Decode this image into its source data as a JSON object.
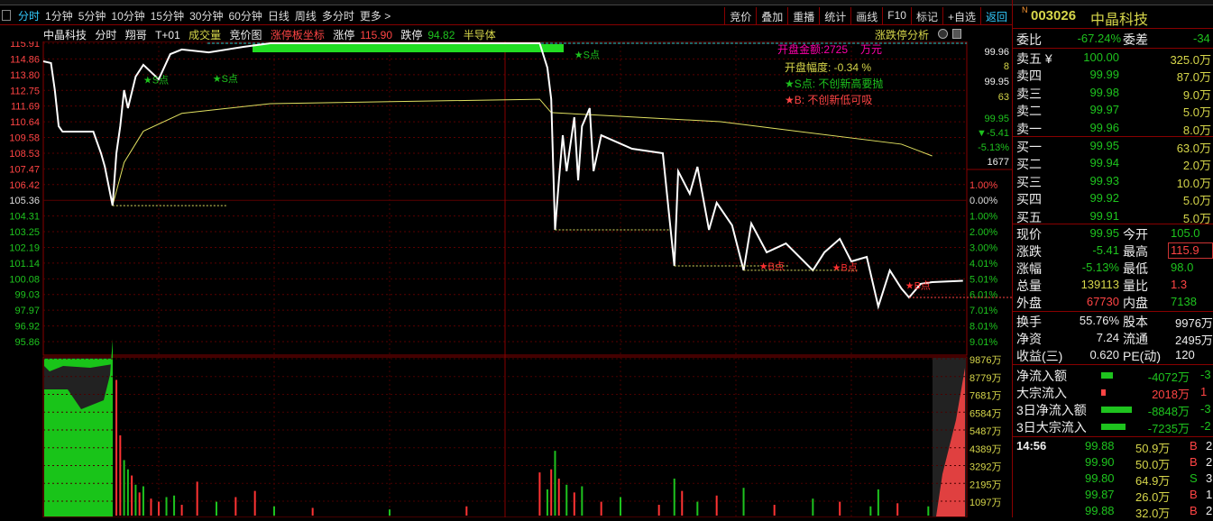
{
  "toolbar": {
    "tabs": [
      "分时",
      "1分钟",
      "5分钟",
      "10分钟",
      "15分钟",
      "30分钟",
      "60分钟",
      "日线",
      "周线",
      "多分时",
      "更多 >"
    ],
    "buttons": [
      "竞价",
      "叠加",
      "重播",
      "统计",
      "画线",
      "F10",
      "标记",
      "+自选",
      "返回"
    ]
  },
  "chart_header": {
    "name": "中晶科技",
    "mode": "分时",
    "user": "翔哥",
    "tplus": "T+01",
    "volume_label": "成交量",
    "auction_label": "竞价图",
    "limit_board": "涨停板坐标",
    "limit_up_label": "涨停",
    "limit_up": "115.90",
    "limit_down_label": "跌停",
    "limit_down": "94.82",
    "sector": "半导体",
    "analysis": "涨跌停分析"
  },
  "annotations": {
    "open_amount": "开盘金额:2725",
    "open_amount_unit": "万元",
    "open_range": "开盘幅度: -0.34  %",
    "s_note": "★S点: 不创新高要抛",
    "b_note": "★B: 不创新低可吸"
  },
  "colors": {
    "price_line": "#ffffff",
    "avg_line": "#e0e060",
    "up": "#ff3030",
    "down": "#1ec31e",
    "grid": "#6a0000"
  },
  "chart_data": {
    "type": "line",
    "price_ticks": [
      "115.91",
      "114.86",
      "113.80",
      "112.75",
      "111.69",
      "110.64",
      "109.58",
      "108.53",
      "107.47",
      "106.42",
      "105.36",
      "104.31",
      "103.25",
      "102.19",
      "101.14",
      "100.08",
      "99.03",
      "97.97",
      "96.92",
      "95.86"
    ],
    "pct_ticks": [
      "1.00%",
      "0.00%",
      "1.00%",
      "2.00%",
      "3.00%",
      "4.01%",
      "5.01%",
      "6.01%",
      "7.01%",
      "8.01%",
      "9.01%"
    ],
    "ylim": [
      95.86,
      115.91
    ],
    "xlim_minutes": [
      0,
      240
    ],
    "price": [
      [
        0,
        114.7
      ],
      [
        2,
        114.58
      ],
      [
        3,
        112.76
      ],
      [
        4,
        110.34
      ],
      [
        5,
        109.97
      ],
      [
        13,
        109.97
      ],
      [
        15,
        108.52
      ],
      [
        16,
        107.61
      ],
      [
        18,
        105.0
      ],
      [
        19,
        108.52
      ],
      [
        20,
        110.34
      ],
      [
        21,
        112.76
      ],
      [
        22,
        111.55
      ],
      [
        24,
        113.67
      ],
      [
        26,
        114.46
      ],
      [
        30,
        113.49
      ],
      [
        33,
        115.18
      ],
      [
        36,
        115.49
      ],
      [
        43,
        115.3
      ],
      [
        52,
        115.67
      ],
      [
        59,
        115.91
      ],
      [
        129,
        115.91
      ],
      [
        131,
        114.27
      ],
      [
        132,
        112.15
      ],
      [
        133,
        103.37
      ],
      [
        134,
        106.7
      ],
      [
        135,
        109.73
      ],
      [
        136,
        107.31
      ],
      [
        138,
        110.94
      ],
      [
        139,
        106.7
      ],
      [
        140,
        110.34
      ],
      [
        142,
        111.55
      ],
      [
        143,
        107.31
      ],
      [
        145,
        109.73
      ],
      [
        153,
        108.82
      ],
      [
        161,
        108.52
      ],
      [
        164,
        100.95
      ],
      [
        165,
        107.31
      ],
      [
        168,
        105.8
      ],
      [
        170,
        107.61
      ],
      [
        173,
        103.37
      ],
      [
        175,
        105.19
      ],
      [
        179,
        103.68
      ],
      [
        182,
        100.65
      ],
      [
        184,
        103.8
      ],
      [
        188,
        101.86
      ],
      [
        193,
        102.46
      ],
      [
        200,
        100.65
      ],
      [
        203,
        101.86
      ],
      [
        207,
        102.77
      ],
      [
        210,
        101.25
      ],
      [
        214,
        101.55
      ],
      [
        217,
        98.22
      ],
      [
        220,
        100.65
      ],
      [
        223,
        99.43
      ],
      [
        225,
        98.83
      ],
      [
        228,
        99.74
      ],
      [
        231,
        99.86
      ],
      [
        239,
        99.95
      ]
    ],
    "avg": [
      [
        18,
        105.0
      ],
      [
        21,
        107.9
      ],
      [
        26,
        110.0
      ],
      [
        36,
        111.2
      ],
      [
        59,
        111.85
      ],
      [
        129,
        112.15
      ],
      [
        132,
        111.25
      ],
      [
        176,
        110.64
      ],
      [
        223,
        109.13
      ],
      [
        231,
        108.34
      ]
    ],
    "markers": [
      {
        "minute": 26,
        "price": 113.2,
        "label": "★S点",
        "color": "#1ec31e"
      },
      {
        "minute": 44,
        "price": 113.3,
        "label": "★S点",
        "color": "#1ec31e"
      },
      {
        "minute": 138,
        "price": 114.9,
        "label": "★S点",
        "color": "#1ec31e"
      },
      {
        "minute": 186,
        "price": 100.7,
        "label": "★B点",
        "color": "#ff3030"
      },
      {
        "minute": 205,
        "price": 100.6,
        "label": "★B点",
        "color": "#ff3030"
      },
      {
        "minute": 224,
        "price": 99.4,
        "label": "★B点",
        "color": "#ff3030"
      }
    ],
    "vol_ticks": [
      "9876万",
      "8779万",
      "7681万",
      "6584万",
      "5487万",
      "4389万",
      "3292万",
      "2195万",
      "1097万"
    ],
    "volume": [
      [
        19,
        8800,
        "u"
      ],
      [
        20,
        5200,
        "u"
      ],
      [
        21,
        3600,
        "d"
      ],
      [
        22,
        3000,
        "d"
      ],
      [
        23,
        2600,
        "u"
      ],
      [
        24,
        2000,
        "d"
      ],
      [
        25,
        1500,
        "u"
      ],
      [
        26,
        1900,
        "d"
      ],
      [
        28,
        1100,
        "u"
      ],
      [
        30,
        900,
        "u"
      ],
      [
        32,
        1200,
        "d"
      ],
      [
        34,
        1300,
        "d"
      ],
      [
        36,
        700,
        "u"
      ],
      [
        40,
        2200,
        "u"
      ],
      [
        45,
        900,
        "d"
      ],
      [
        50,
        1200,
        "u"
      ],
      [
        55,
        1600,
        "u"
      ],
      [
        60,
        600,
        "d"
      ],
      [
        70,
        500,
        "u"
      ],
      [
        90,
        400,
        "d"
      ],
      [
        110,
        600,
        "u"
      ],
      [
        129,
        2800,
        "u"
      ],
      [
        131,
        1700,
        "d"
      ],
      [
        132,
        3000,
        "u"
      ],
      [
        133,
        4200,
        "d"
      ],
      [
        134,
        2400,
        "u"
      ],
      [
        136,
        2000,
        "d"
      ],
      [
        138,
        1500,
        "u"
      ],
      [
        140,
        1900,
        "d"
      ],
      [
        145,
        900,
        "u"
      ],
      [
        150,
        1200,
        "d"
      ],
      [
        160,
        700,
        "u"
      ],
      [
        164,
        2400,
        "d"
      ],
      [
        166,
        1600,
        "u"
      ],
      [
        170,
        900,
        "d"
      ],
      [
        175,
        1300,
        "u"
      ],
      [
        182,
        1800,
        "d"
      ],
      [
        190,
        700,
        "u"
      ],
      [
        200,
        1100,
        "d"
      ],
      [
        207,
        900,
        "u"
      ],
      [
        215,
        600,
        "d"
      ],
      [
        217,
        1700,
        "d"
      ],
      [
        222,
        800,
        "u"
      ],
      [
        230,
        600,
        "d"
      ]
    ]
  },
  "right_axis": {
    "ask1": "99.96",
    "ask1_vol": "8",
    "bid1": "99.95",
    "bid1_vol": "63",
    "price": "99.95",
    "change": "▼-5.41",
    "pct": "-5.13%",
    "last_vol": "1677"
  },
  "quote": {
    "code": "003026",
    "name": "中晶科技",
    "badge": "N",
    "ratio_label": "委比",
    "ratio": "-67.24%",
    "diff_label": "委差",
    "diff": "-34",
    "asks": [
      {
        "label": "卖五 ¥",
        "price": "100.00",
        "vol": "325.0万"
      },
      {
        "label": "卖四",
        "price": "99.99",
        "vol": "87.0万"
      },
      {
        "label": "卖三",
        "price": "99.98",
        "vol": "9.0万"
      },
      {
        "label": "卖二",
        "price": "99.97",
        "vol": "5.0万"
      },
      {
        "label": "卖一",
        "price": "99.96",
        "vol": "8.0万"
      }
    ],
    "bids": [
      {
        "label": "买一",
        "price": "99.95",
        "vol": "63.0万"
      },
      {
        "label": "买二",
        "price": "99.94",
        "vol": "2.0万"
      },
      {
        "label": "买三",
        "price": "99.93",
        "vol": "10.0万"
      },
      {
        "label": "买四",
        "price": "99.92",
        "vol": "5.0万"
      },
      {
        "label": "买五",
        "price": "99.91",
        "vol": "5.0万"
      }
    ],
    "stats": [
      [
        "现价",
        "99.95",
        "g",
        "今开",
        "105.0",
        "g"
      ],
      [
        "涨跌",
        "-5.41",
        "g",
        "最高",
        "115.9",
        "r"
      ],
      [
        "涨幅",
        "-5.13%",
        "g",
        "最低",
        "98.0",
        "g"
      ],
      [
        "总量",
        "139113",
        "y",
        "量比",
        "1.3",
        "r"
      ],
      [
        "外盘",
        "67730",
        "r",
        "内盘",
        "7138",
        "g"
      ]
    ],
    "stats2": [
      [
        "换手",
        "55.76%",
        "股本",
        "9976万"
      ],
      [
        "净资",
        "7.24",
        "流通",
        "2495万"
      ],
      [
        "收益(三)",
        "0.620",
        "PE(动)",
        "120"
      ]
    ],
    "flows": [
      {
        "label": "净流入额",
        "bar": 0.35,
        "color": "#1ec31e",
        "value": "-4072万",
        "extra": "-3"
      },
      {
        "label": "大宗流入",
        "bar": 0.15,
        "color": "#ff4444",
        "value": "2018万",
        "extra": "1"
      },
      {
        "label": "3日净流入额",
        "bar": 0.95,
        "color": "#1ec31e",
        "value": "-8848万",
        "extra": "-3"
      },
      {
        "label": "3日大宗流入",
        "bar": 0.75,
        "color": "#1ec31e",
        "value": "-7235万",
        "extra": "-2"
      }
    ],
    "ticks_time": "14:56",
    "ticks": [
      {
        "price": "99.88",
        "vol": "50.9万",
        "side": "B",
        "n": "2"
      },
      {
        "price": "99.90",
        "vol": "50.0万",
        "side": "B",
        "n": "2"
      },
      {
        "price": "99.80",
        "vol": "64.9万",
        "side": "S",
        "n": "3"
      },
      {
        "price": "99.87",
        "vol": "26.0万",
        "side": "B",
        "n": "1"
      },
      {
        "price": "99.88",
        "vol": "32.0万",
        "side": "B",
        "n": "2"
      }
    ]
  }
}
